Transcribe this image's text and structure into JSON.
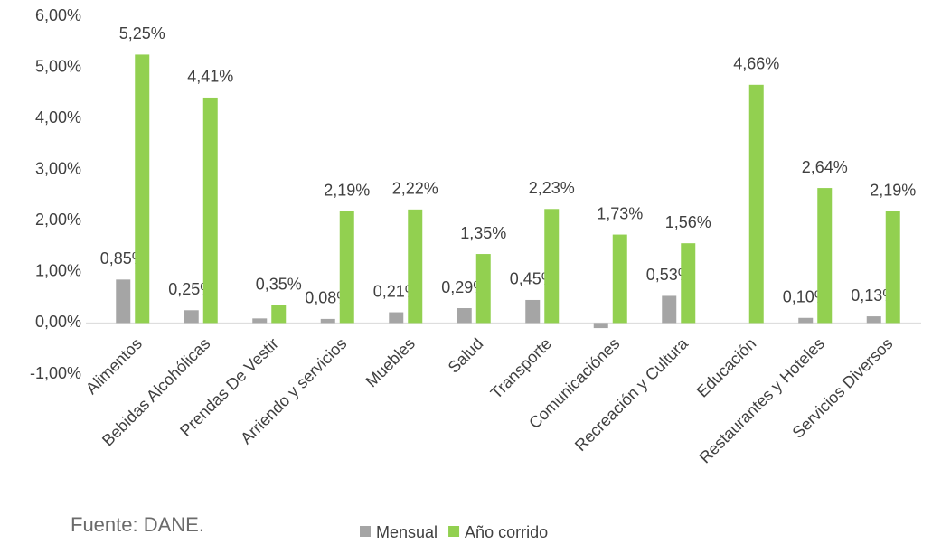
{
  "chart_data": {
    "type": "bar",
    "source": "Fuente: DANE.",
    "categories": [
      "Alimentos",
      "Bebidas Alcohólicas",
      "Prendas De Vestir",
      "Arriendo y servicios",
      "Muebles",
      "Salud",
      "Transporte",
      "Comunicaciónes",
      "Recreación y Cultura",
      "Educación",
      "Restaurantes y Hoteles",
      "Servicios Diversos"
    ],
    "series": [
      {
        "name": "Mensual",
        "color": "#a5a5a5",
        "values": [
          0.85,
          0.25,
          0.09,
          0.08,
          0.21,
          0.29,
          0.45,
          -0.1,
          0.53,
          0,
          0.1,
          0.13
        ],
        "value_labels": [
          "0,85%",
          "0,25%",
          null,
          "0,08%",
          "0,21%",
          "0,29%",
          "0,45%",
          null,
          "0,53%",
          null,
          "0,10%",
          "0,13%"
        ]
      },
      {
        "name": "Año corrido",
        "color": "#92d050",
        "values": [
          5.25,
          4.41,
          0.35,
          2.19,
          2.22,
          1.35,
          2.23,
          1.73,
          1.56,
          4.66,
          2.64,
          2.19
        ],
        "value_labels": [
          "5,25%",
          "4,41%",
          "0,35%",
          "2,19%",
          "2,22%",
          "1,35%",
          "2,23%",
          "1,73%",
          "1,56%",
          "4,66%",
          "2,64%",
          "2,19%"
        ]
      }
    ],
    "ylim": [
      -1,
      6
    ],
    "yticks": [
      {
        "value": -1,
        "label": "-1,00%"
      },
      {
        "value": 0,
        "label": "0,00%"
      },
      {
        "value": 1,
        "label": "1,00%"
      },
      {
        "value": 2,
        "label": "2,00%"
      },
      {
        "value": 3,
        "label": "3,00%"
      },
      {
        "value": 4,
        "label": "4,00%"
      },
      {
        "value": 5,
        "label": "5,00%"
      },
      {
        "value": 6,
        "label": "6,00%"
      }
    ],
    "grid": false,
    "legend": "bottom"
  }
}
